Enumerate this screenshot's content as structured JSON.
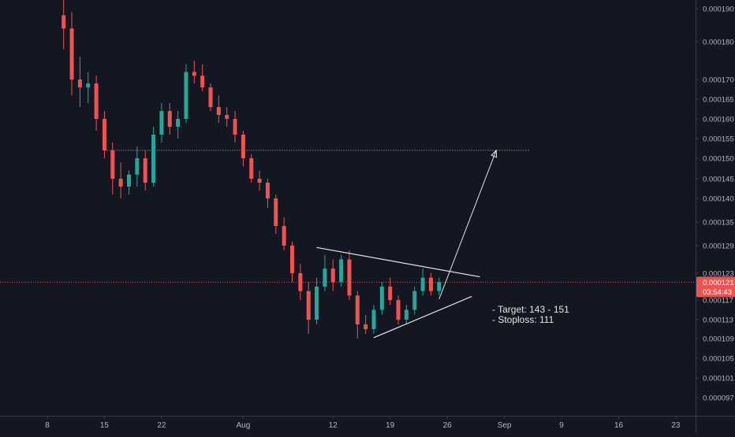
{
  "colors": {
    "background": "#131722",
    "up": "#26a69a",
    "down": "#ef5350",
    "axis_text": "#b2b5be",
    "axis_line": "#363a45",
    "price_line": "#ef5350",
    "resistance_line": "#b2b5be",
    "drawing": "#e6e6e6"
  },
  "chart_data": {
    "type": "candlestick",
    "y_axis": {
      "position": "right",
      "ticks": [
        "0.000190",
        "0.000180",
        "0.000170",
        "0.000165",
        "0.000160",
        "0.000155",
        "0.000150",
        "0.000145",
        "0.000140",
        "0.000135",
        "0.000129",
        "0.000123",
        "0.000117",
        "0.000113",
        "0.000109",
        "0.000105",
        "0.000101",
        "0.000097"
      ]
    },
    "x_axis": {
      "ticks": [
        "8",
        "15",
        "22",
        "Aug",
        "12",
        "19",
        "26",
        "Sep",
        "9",
        "16",
        "23"
      ]
    },
    "current_price": {
      "label": "0.000121",
      "countdown": "03:54:43",
      "value": 0.000121
    },
    "horizontal_line": {
      "value": 0.000152,
      "style": "dotted"
    },
    "trendlines": {
      "upper": {
        "from": [
          "Aug 10",
          0.0001286
        ],
        "to": [
          "Aug 30",
          0.0001222
        ]
      },
      "lower": {
        "from": [
          "Aug 17",
          0.0001092
        ],
        "to": [
          "Aug 29",
          0.0001178
        ]
      }
    },
    "projection_arrow": {
      "from": [
        "Aug 25",
        0.0001172
      ],
      "to": [
        "Sep 1",
        0.000152
      ]
    },
    "candles": [
      {
        "date": "Jul 10",
        "open": 0.000188,
        "high": 0.000195,
        "low": 0.000178,
        "close": 0.000184
      },
      {
        "date": "Jul 11",
        "open": 0.000184,
        "high": 0.000189,
        "low": 0.000166,
        "close": 0.00017
      },
      {
        "date": "Jul 12",
        "open": 0.00017,
        "high": 0.000176,
        "low": 0.000163,
        "close": 0.000168
      },
      {
        "date": "Jul 13",
        "open": 0.000168,
        "high": 0.000172,
        "low": 0.000164,
        "close": 0.000169
      },
      {
        "date": "Jul 14",
        "open": 0.000169,
        "high": 0.000171,
        "low": 0.000157,
        "close": 0.00016
      },
      {
        "date": "Jul 15",
        "open": 0.00016,
        "high": 0.000162,
        "low": 0.00015,
        "close": 0.000152
      },
      {
        "date": "Jul 16",
        "open": 0.000152,
        "high": 0.000154,
        "low": 0.000141,
        "close": 0.000145
      },
      {
        "date": "Jul 17",
        "open": 0.000145,
        "high": 0.000149,
        "low": 0.00014,
        "close": 0.000143
      },
      {
        "date": "Jul 18",
        "open": 0.000143,
        "high": 0.000147,
        "low": 0.000141,
        "close": 0.000146
      },
      {
        "date": "Jul 19",
        "open": 0.000146,
        "high": 0.000153,
        "low": 0.000143,
        "close": 0.00015
      },
      {
        "date": "Jul 20",
        "open": 0.00015,
        "high": 0.000152,
        "low": 0.000142,
        "close": 0.000144
      },
      {
        "date": "Jul 21",
        "open": 0.000144,
        "high": 0.000158,
        "low": 0.000143,
        "close": 0.000156
      },
      {
        "date": "Jul 22",
        "open": 0.000156,
        "high": 0.000164,
        "low": 0.000154,
        "close": 0.000162
      },
      {
        "date": "Jul 23",
        "open": 0.000162,
        "high": 0.000164,
        "low": 0.000156,
        "close": 0.000158
      },
      {
        "date": "Jul 24",
        "open": 0.000158,
        "high": 0.000162,
        "low": 0.000155,
        "close": 0.00016
      },
      {
        "date": "Jul 25",
        "open": 0.00016,
        "high": 0.000174,
        "low": 0.000159,
        "close": 0.000172
      },
      {
        "date": "Jul 26",
        "open": 0.000172,
        "high": 0.000175,
        "low": 0.000169,
        "close": 0.000171
      },
      {
        "date": "Jul 27",
        "open": 0.000171,
        "high": 0.000174,
        "low": 0.000167,
        "close": 0.000168
      },
      {
        "date": "Jul 28",
        "open": 0.000168,
        "high": 0.000169,
        "low": 0.000162,
        "close": 0.000163
      },
      {
        "date": "Jul 29",
        "open": 0.000163,
        "high": 0.000166,
        "low": 0.000159,
        "close": 0.000161
      },
      {
        "date": "Jul 30",
        "open": 0.000161,
        "high": 0.000163,
        "low": 0.000158,
        "close": 0.00016
      },
      {
        "date": "Jul 31",
        "open": 0.00016,
        "high": 0.000162,
        "low": 0.000154,
        "close": 0.000156
      },
      {
        "date": "Aug 1",
        "open": 0.000156,
        "high": 0.000157,
        "low": 0.000148,
        "close": 0.00015
      },
      {
        "date": "Aug 2",
        "open": 0.00015,
        "high": 0.000151,
        "low": 0.000144,
        "close": 0.000145
      },
      {
        "date": "Aug 3",
        "open": 0.000145,
        "high": 0.000147,
        "low": 0.000142,
        "close": 0.000144
      },
      {
        "date": "Aug 4",
        "open": 0.000144,
        "high": 0.000145,
        "low": 0.000138,
        "close": 0.00014
      },
      {
        "date": "Aug 5",
        "open": 0.00014,
        "high": 0.000141,
        "low": 0.000132,
        "close": 0.000134
      },
      {
        "date": "Aug 6",
        "open": 0.000134,
        "high": 0.000136,
        "low": 0.000128,
        "close": 0.000129
      },
      {
        "date": "Aug 7",
        "open": 0.000129,
        "high": 0.00013,
        "low": 0.000121,
        "close": 0.000123
      },
      {
        "date": "Aug 8",
        "open": 0.000123,
        "high": 0.000125,
        "low": 0.000117,
        "close": 0.000119
      },
      {
        "date": "Aug 9",
        "open": 0.000119,
        "high": 0.000121,
        "low": 0.00011,
        "close": 0.000113
      },
      {
        "date": "Aug 10",
        "open": 0.000113,
        "high": 0.000122,
        "low": 0.000112,
        "close": 0.00012
      },
      {
        "date": "Aug 11",
        "open": 0.00012,
        "high": 0.000127,
        "low": 0.000119,
        "close": 0.000124
      },
      {
        "date": "Aug 12",
        "open": 0.000124,
        "high": 0.000126,
        "low": 0.000119,
        "close": 0.000121
      },
      {
        "date": "Aug 13",
        "open": 0.000121,
        "high": 0.000127,
        "low": 0.00012,
        "close": 0.000126
      },
      {
        "date": "Aug 14",
        "open": 0.000126,
        "high": 0.000128,
        "low": 0.000117,
        "close": 0.000118
      },
      {
        "date": "Aug 15",
        "open": 0.000118,
        "high": 0.000119,
        "low": 0.000109,
        "close": 0.000112
      },
      {
        "date": "Aug 16",
        "open": 0.000112,
        "high": 0.000114,
        "low": 0.00011,
        "close": 0.000111
      },
      {
        "date": "Aug 17",
        "open": 0.000111,
        "high": 0.000116,
        "low": 0.00011,
        "close": 0.000115
      },
      {
        "date": "Aug 18",
        "open": 0.000115,
        "high": 0.000121,
        "low": 0.000114,
        "close": 0.00012
      },
      {
        "date": "Aug 19",
        "open": 0.00012,
        "high": 0.000122,
        "low": 0.000116,
        "close": 0.000117
      },
      {
        "date": "Aug 20",
        "open": 0.000117,
        "high": 0.000118,
        "low": 0.000112,
        "close": 0.000113
      },
      {
        "date": "Aug 21",
        "open": 0.000113,
        "high": 0.000116,
        "low": 0.000112,
        "close": 0.000115
      },
      {
        "date": "Aug 22",
        "open": 0.000115,
        "high": 0.00012,
        "low": 0.000114,
        "close": 0.000119
      },
      {
        "date": "Aug 23",
        "open": 0.000119,
        "high": 0.000124,
        "low": 0.000118,
        "close": 0.000122
      },
      {
        "date": "Aug 24",
        "open": 0.000122,
        "high": 0.000123,
        "low": 0.000118,
        "close": 0.000119
      },
      {
        "date": "Aug 25",
        "open": 0.000119,
        "high": 0.000122,
        "low": 0.000118,
        "close": 0.000121
      }
    ]
  },
  "annotation": {
    "lines": [
      "- Target: 143 - 151",
      "- Stoploss: 111"
    ]
  }
}
